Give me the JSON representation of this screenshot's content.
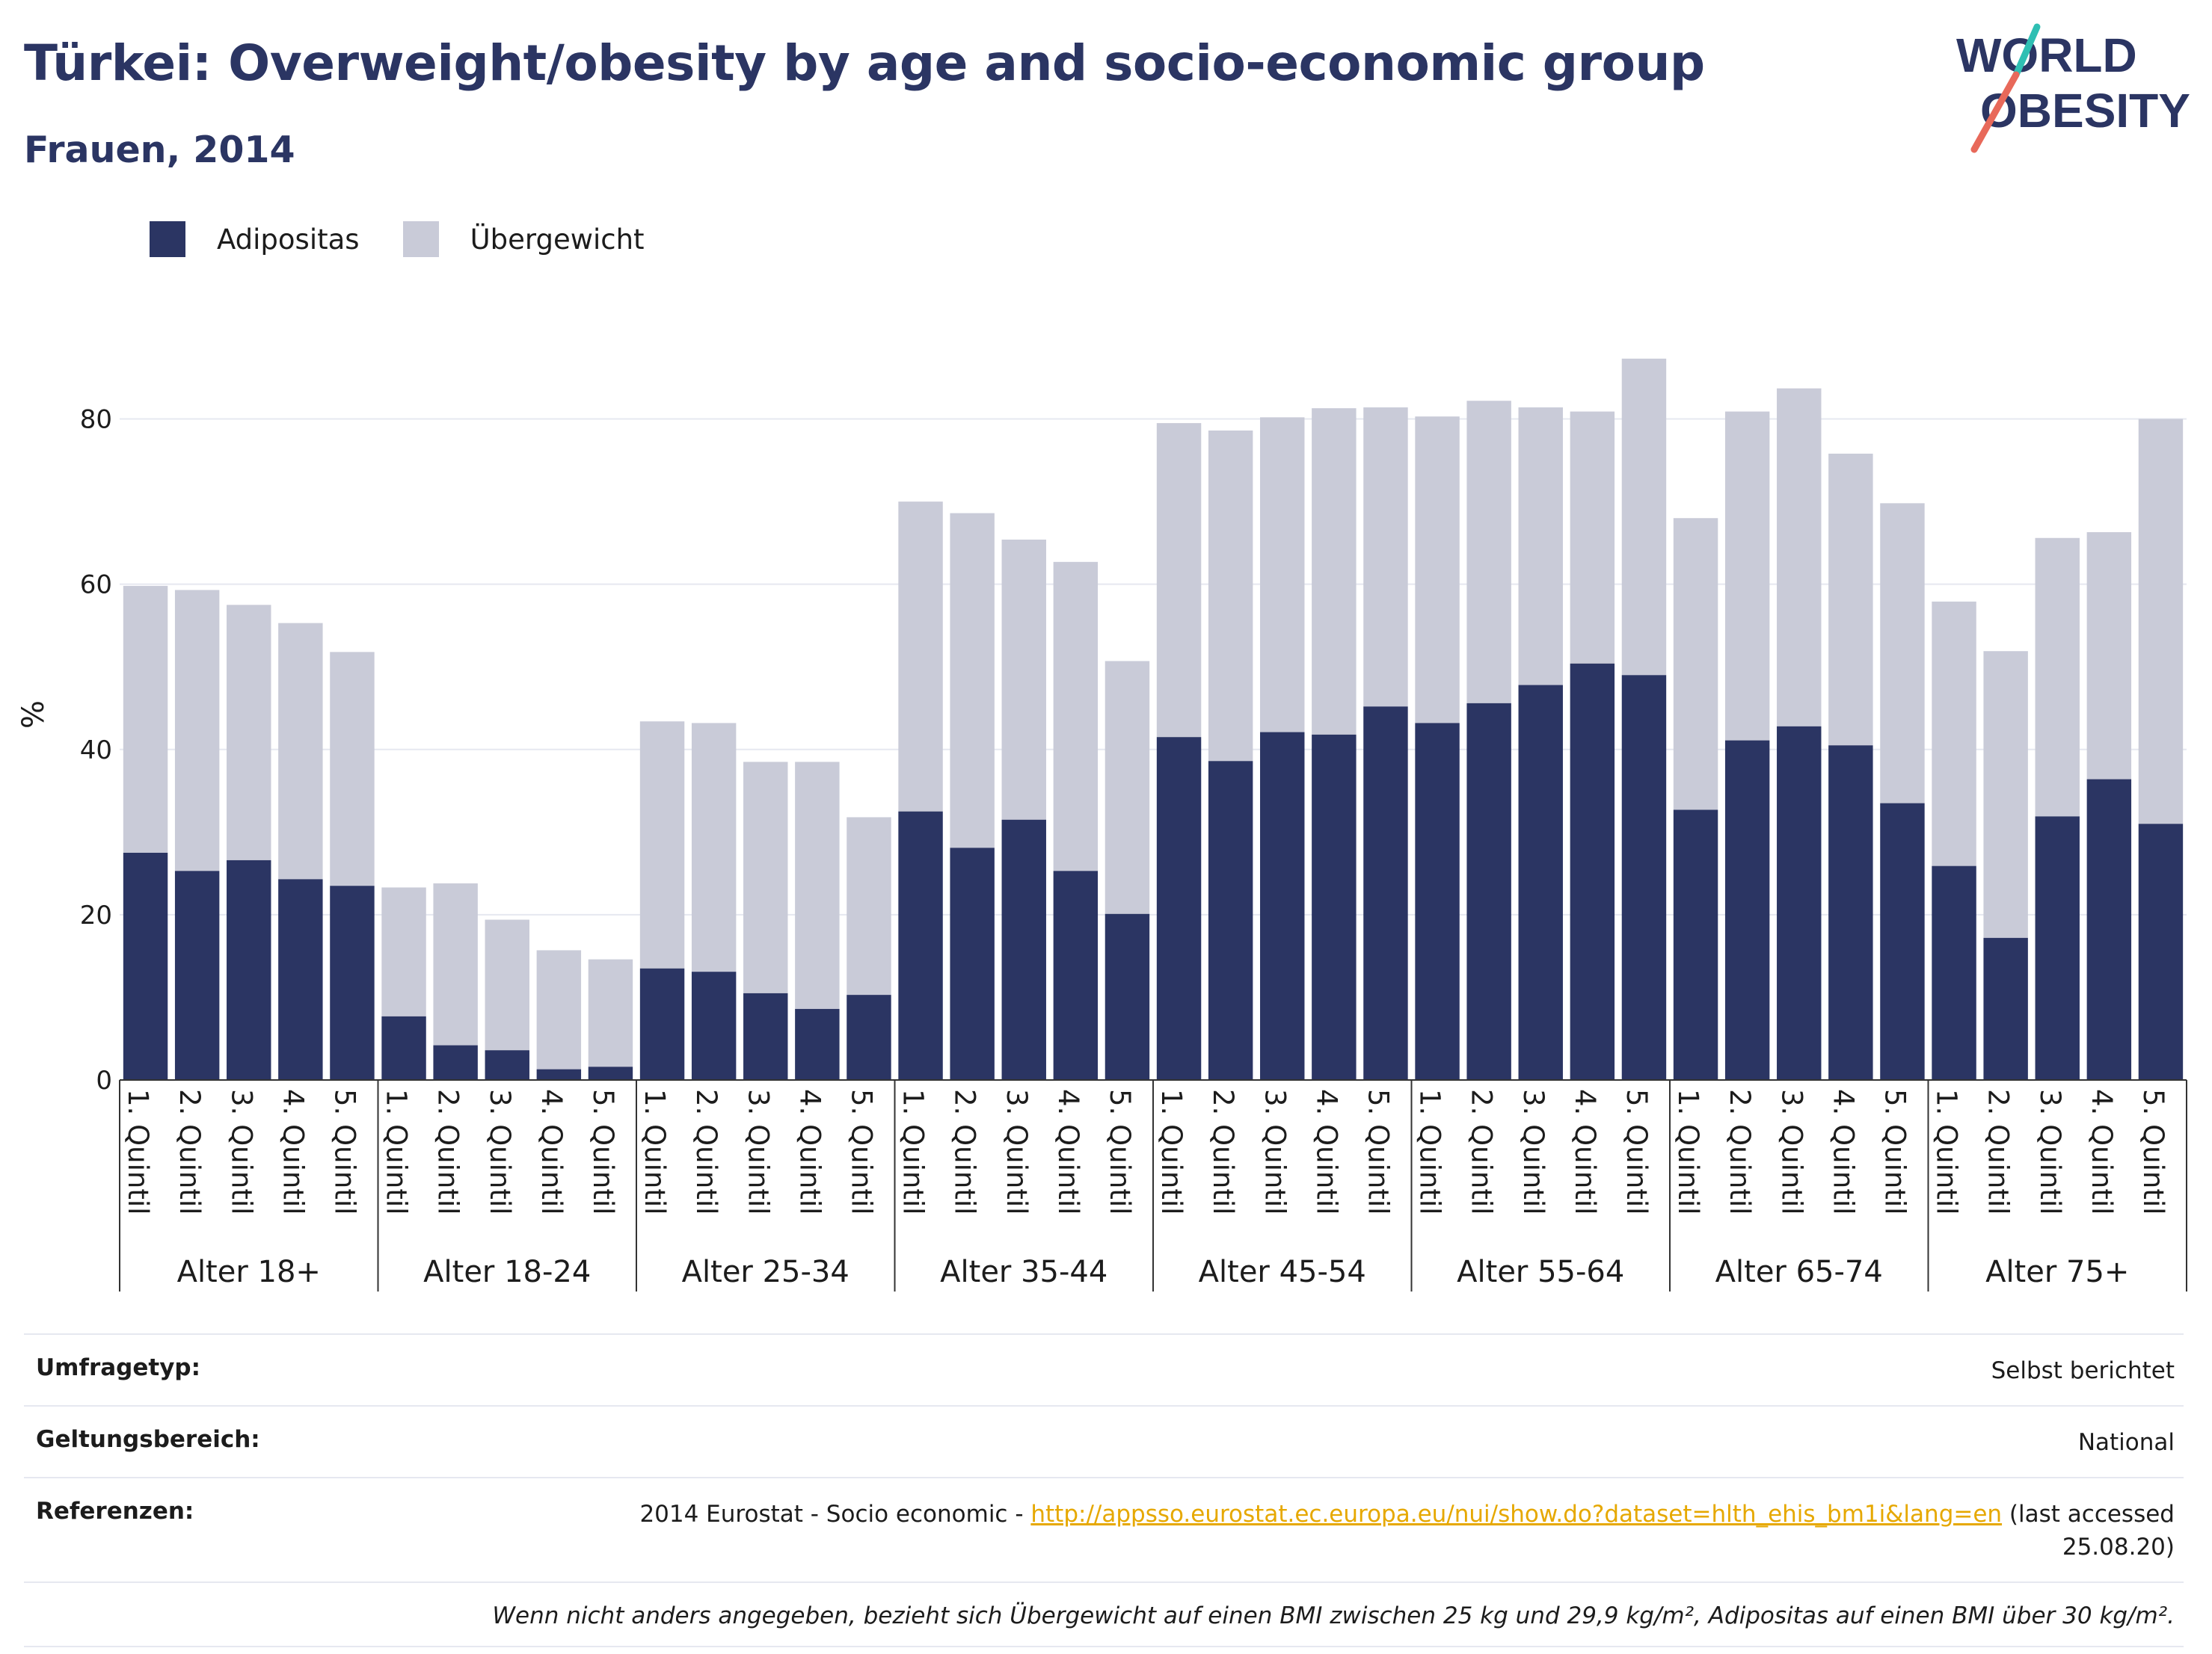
{
  "header": {
    "title": "Türkei: Overweight/obesity by age and socio-economic group",
    "subtitle": "Frauen, 2014"
  },
  "logo": {
    "line1": "WORLD",
    "line2": "OBESITY"
  },
  "colors": {
    "obesity": "#2b3563",
    "overweight": "#c9cbd8",
    "title": "#2b3563",
    "link": "#e6a800",
    "logo_slash_top": "#2fbfb3",
    "logo_slash_bottom": "#e8695a"
  },
  "legend": [
    {
      "label": "Adipositas",
      "color": "#2b3563"
    },
    {
      "label": "Übergewicht",
      "color": "#c9cbd8"
    }
  ],
  "chart_data": {
    "type": "bar",
    "stacked": true,
    "title": "Türkei: Overweight/obesity by age and socio-economic group",
    "subtitle": "Frauen, 2014",
    "xlabel": "",
    "ylabel": "%",
    "ylim": [
      0,
      90
    ],
    "yticks": [
      0,
      20,
      40,
      60,
      80
    ],
    "grid": true,
    "legend_position": "top-left",
    "groups": [
      "Alter 18+",
      "Alter 18-24",
      "Alter 25-34",
      "Alter 35-44",
      "Alter 45-54",
      "Alter 55-64",
      "Alter 65-74",
      "Alter 75+"
    ],
    "categories": [
      "1. Quintil",
      "2. Quintil",
      "3. Quintil",
      "4. Quintil",
      "5. Quintil"
    ],
    "series": [
      {
        "name": "Adipositas",
        "values": [
          [
            27.5,
            25.3,
            26.6,
            24.3,
            23.5
          ],
          [
            7.7,
            4.2,
            3.6,
            1.3,
            1.6
          ],
          [
            13.5,
            13.1,
            10.5,
            8.6,
            10.3
          ],
          [
            32.5,
            28.1,
            31.5,
            25.3,
            20.1
          ],
          [
            41.5,
            38.6,
            42.1,
            41.8,
            45.2
          ],
          [
            43.2,
            45.6,
            47.8,
            50.4,
            49.0
          ],
          [
            32.7,
            41.1,
            42.8,
            40.5,
            33.5
          ],
          [
            25.9,
            17.2,
            31.9,
            36.4,
            31.0
          ]
        ]
      },
      {
        "name": "Übergewicht",
        "values": [
          [
            32.3,
            34.0,
            30.9,
            31.0,
            28.3
          ],
          [
            15.6,
            19.6,
            15.8,
            14.4,
            13.0
          ],
          [
            29.9,
            30.1,
            28.0,
            29.9,
            21.5
          ],
          [
            37.5,
            40.5,
            33.9,
            37.4,
            30.6
          ],
          [
            38.0,
            40.0,
            38.1,
            39.5,
            36.2
          ],
          [
            37.1,
            36.6,
            33.6,
            30.5,
            38.3
          ],
          [
            35.3,
            39.8,
            40.9,
            35.3,
            36.3
          ],
          [
            32.0,
            34.7,
            33.7,
            29.9,
            49.0
          ]
        ]
      }
    ]
  },
  "info": {
    "rows": [
      {
        "label": "Umfragetyp:",
        "value": "Selbst berichtet"
      },
      {
        "label": "Geltungsbereich:",
        "value": "National"
      }
    ],
    "references": {
      "label": "Referenzen:",
      "prefix": "2014 Eurostat - Socio economic - ",
      "link": "http://appsso.eurostat.ec.europa.eu/nui/show.do?dataset=hlth_ehis_bm1i&lang=en",
      "suffix": " (last accessed",
      "date": "25.08.20)"
    },
    "note": "Wenn nicht anders angegeben, bezieht sich Übergewicht auf einen BMI zwischen 25 kg und 29,9 kg/m², Adipositas auf einen BMI über 30 kg/m²."
  }
}
